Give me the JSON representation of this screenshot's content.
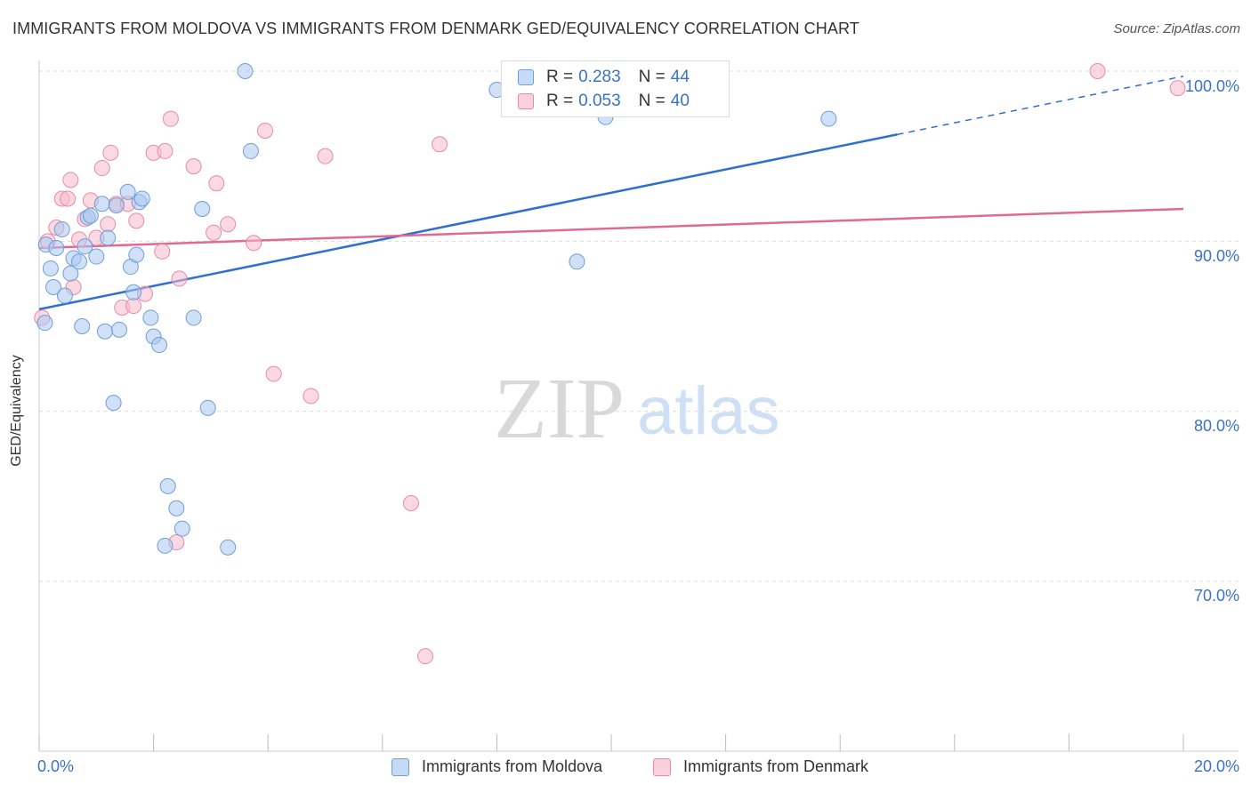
{
  "title": "IMMIGRANTS FROM MOLDOVA VS IMMIGRANTS FROM DENMARK GED/EQUIVALENCY CORRELATION CHART",
  "source": "Source: ZipAtlas.com",
  "watermark": {
    "zip": "ZIP",
    "atlas": "atlas"
  },
  "colors": {
    "moldova_fill": "#a9c8f0",
    "moldova_stroke": "#6f9ed8",
    "moldova_line": "#2f6fcf",
    "denmark_fill": "#f7b9cb",
    "denmark_stroke": "#e88aa7",
    "denmark_line": "#e06a93",
    "tick_label": "#3a72c4"
  },
  "legend": {
    "moldova": {
      "r_key": "R = ",
      "r_val": "0.283",
      "n_key": "N = ",
      "n_val": "44"
    },
    "denmark": {
      "r_key": "R = ",
      "r_val": "0.053",
      "n_key": "N = ",
      "n_val": "40"
    }
  },
  "chart_data": {
    "type": "scatter",
    "title": "IMMIGRANTS FROM MOLDOVA VS IMMIGRANTS FROM DENMARK GED/EQUIVALENCY CORRELATION CHART",
    "xlabel": "",
    "ylabel": "GED/Equivalency",
    "xlim": [
      0,
      20
    ],
    "ylim": [
      60,
      101.5
    ],
    "x_tick_labels": [
      "0.0%",
      "20.0%"
    ],
    "y_ticks": [
      70,
      80,
      90,
      100
    ],
    "y_tick_labels": [
      "70.0%",
      "80.0%",
      "90.0%",
      "100.0%"
    ],
    "grid": true,
    "legend_position": "top-center",
    "series": [
      {
        "name": "Immigrants from Moldova",
        "points": [
          [
            0.1,
            85.2
          ],
          [
            0.12,
            89.8
          ],
          [
            0.2,
            88.4
          ],
          [
            0.25,
            87.3
          ],
          [
            0.3,
            89.6
          ],
          [
            0.4,
            90.7
          ],
          [
            0.45,
            86.8
          ],
          [
            0.55,
            88.1
          ],
          [
            0.6,
            89.0
          ],
          [
            0.7,
            88.8
          ],
          [
            0.75,
            85.0
          ],
          [
            0.8,
            89.7
          ],
          [
            0.85,
            91.4
          ],
          [
            0.9,
            91.5
          ],
          [
            1.0,
            89.1
          ],
          [
            1.1,
            92.2
          ],
          [
            1.15,
            84.7
          ],
          [
            1.2,
            90.2
          ],
          [
            1.3,
            80.5
          ],
          [
            1.35,
            92.1
          ],
          [
            1.4,
            84.8
          ],
          [
            1.55,
            92.9
          ],
          [
            1.6,
            88.5
          ],
          [
            1.65,
            87.0
          ],
          [
            1.7,
            89.2
          ],
          [
            1.75,
            92.3
          ],
          [
            1.8,
            92.5
          ],
          [
            1.95,
            85.5
          ],
          [
            2.0,
            84.4
          ],
          [
            2.1,
            83.9
          ],
          [
            2.2,
            72.1
          ],
          [
            2.25,
            75.6
          ],
          [
            2.4,
            74.3
          ],
          [
            2.5,
            73.1
          ],
          [
            2.7,
            85.5
          ],
          [
            2.85,
            91.9
          ],
          [
            2.95,
            80.2
          ],
          [
            3.3,
            72.0
          ],
          [
            3.6,
            100.0
          ],
          [
            3.7,
            95.3
          ],
          [
            8.0,
            98.9
          ],
          [
            9.4,
            88.8
          ],
          [
            9.9,
            97.3
          ],
          [
            13.8,
            97.2
          ]
        ]
      },
      {
        "name": "Immigrants from Denmark",
        "points": [
          [
            0.05,
            85.5
          ],
          [
            0.15,
            90.0
          ],
          [
            0.3,
            90.8
          ],
          [
            0.4,
            92.5
          ],
          [
            0.5,
            92.5
          ],
          [
            0.55,
            93.6
          ],
          [
            0.6,
            87.3
          ],
          [
            0.7,
            90.1
          ],
          [
            0.8,
            91.3
          ],
          [
            0.9,
            92.4
          ],
          [
            1.0,
            90.2
          ],
          [
            1.1,
            94.3
          ],
          [
            1.2,
            91.0
          ],
          [
            1.25,
            95.2
          ],
          [
            1.35,
            92.2
          ],
          [
            1.45,
            86.1
          ],
          [
            1.55,
            92.2
          ],
          [
            1.65,
            86.2
          ],
          [
            1.7,
            91.2
          ],
          [
            1.85,
            86.9
          ],
          [
            2.0,
            95.2
          ],
          [
            2.15,
            89.4
          ],
          [
            2.2,
            95.3
          ],
          [
            2.3,
            97.2
          ],
          [
            2.4,
            72.3
          ],
          [
            2.45,
            87.8
          ],
          [
            2.7,
            94.4
          ],
          [
            3.05,
            90.5
          ],
          [
            3.1,
            93.4
          ],
          [
            3.3,
            91.0
          ],
          [
            3.75,
            89.9
          ],
          [
            3.95,
            96.5
          ],
          [
            4.1,
            82.2
          ],
          [
            4.75,
            80.9
          ],
          [
            5.0,
            95.0
          ],
          [
            6.5,
            74.6
          ],
          [
            6.75,
            65.6
          ],
          [
            7.0,
            95.7
          ],
          [
            18.5,
            100.0
          ],
          [
            19.9,
            99.0
          ]
        ]
      }
    ],
    "trendlines": [
      {
        "series": "Immigrants from Moldova",
        "x0": 0,
        "y0": 86.0,
        "x_solid_end": 15.0,
        "x1": 20,
        "y1": 99.7
      },
      {
        "series": "Immigrants from Denmark",
        "x0": 0,
        "y0": 89.6,
        "x1": 20,
        "y1": 91.9
      }
    ]
  }
}
